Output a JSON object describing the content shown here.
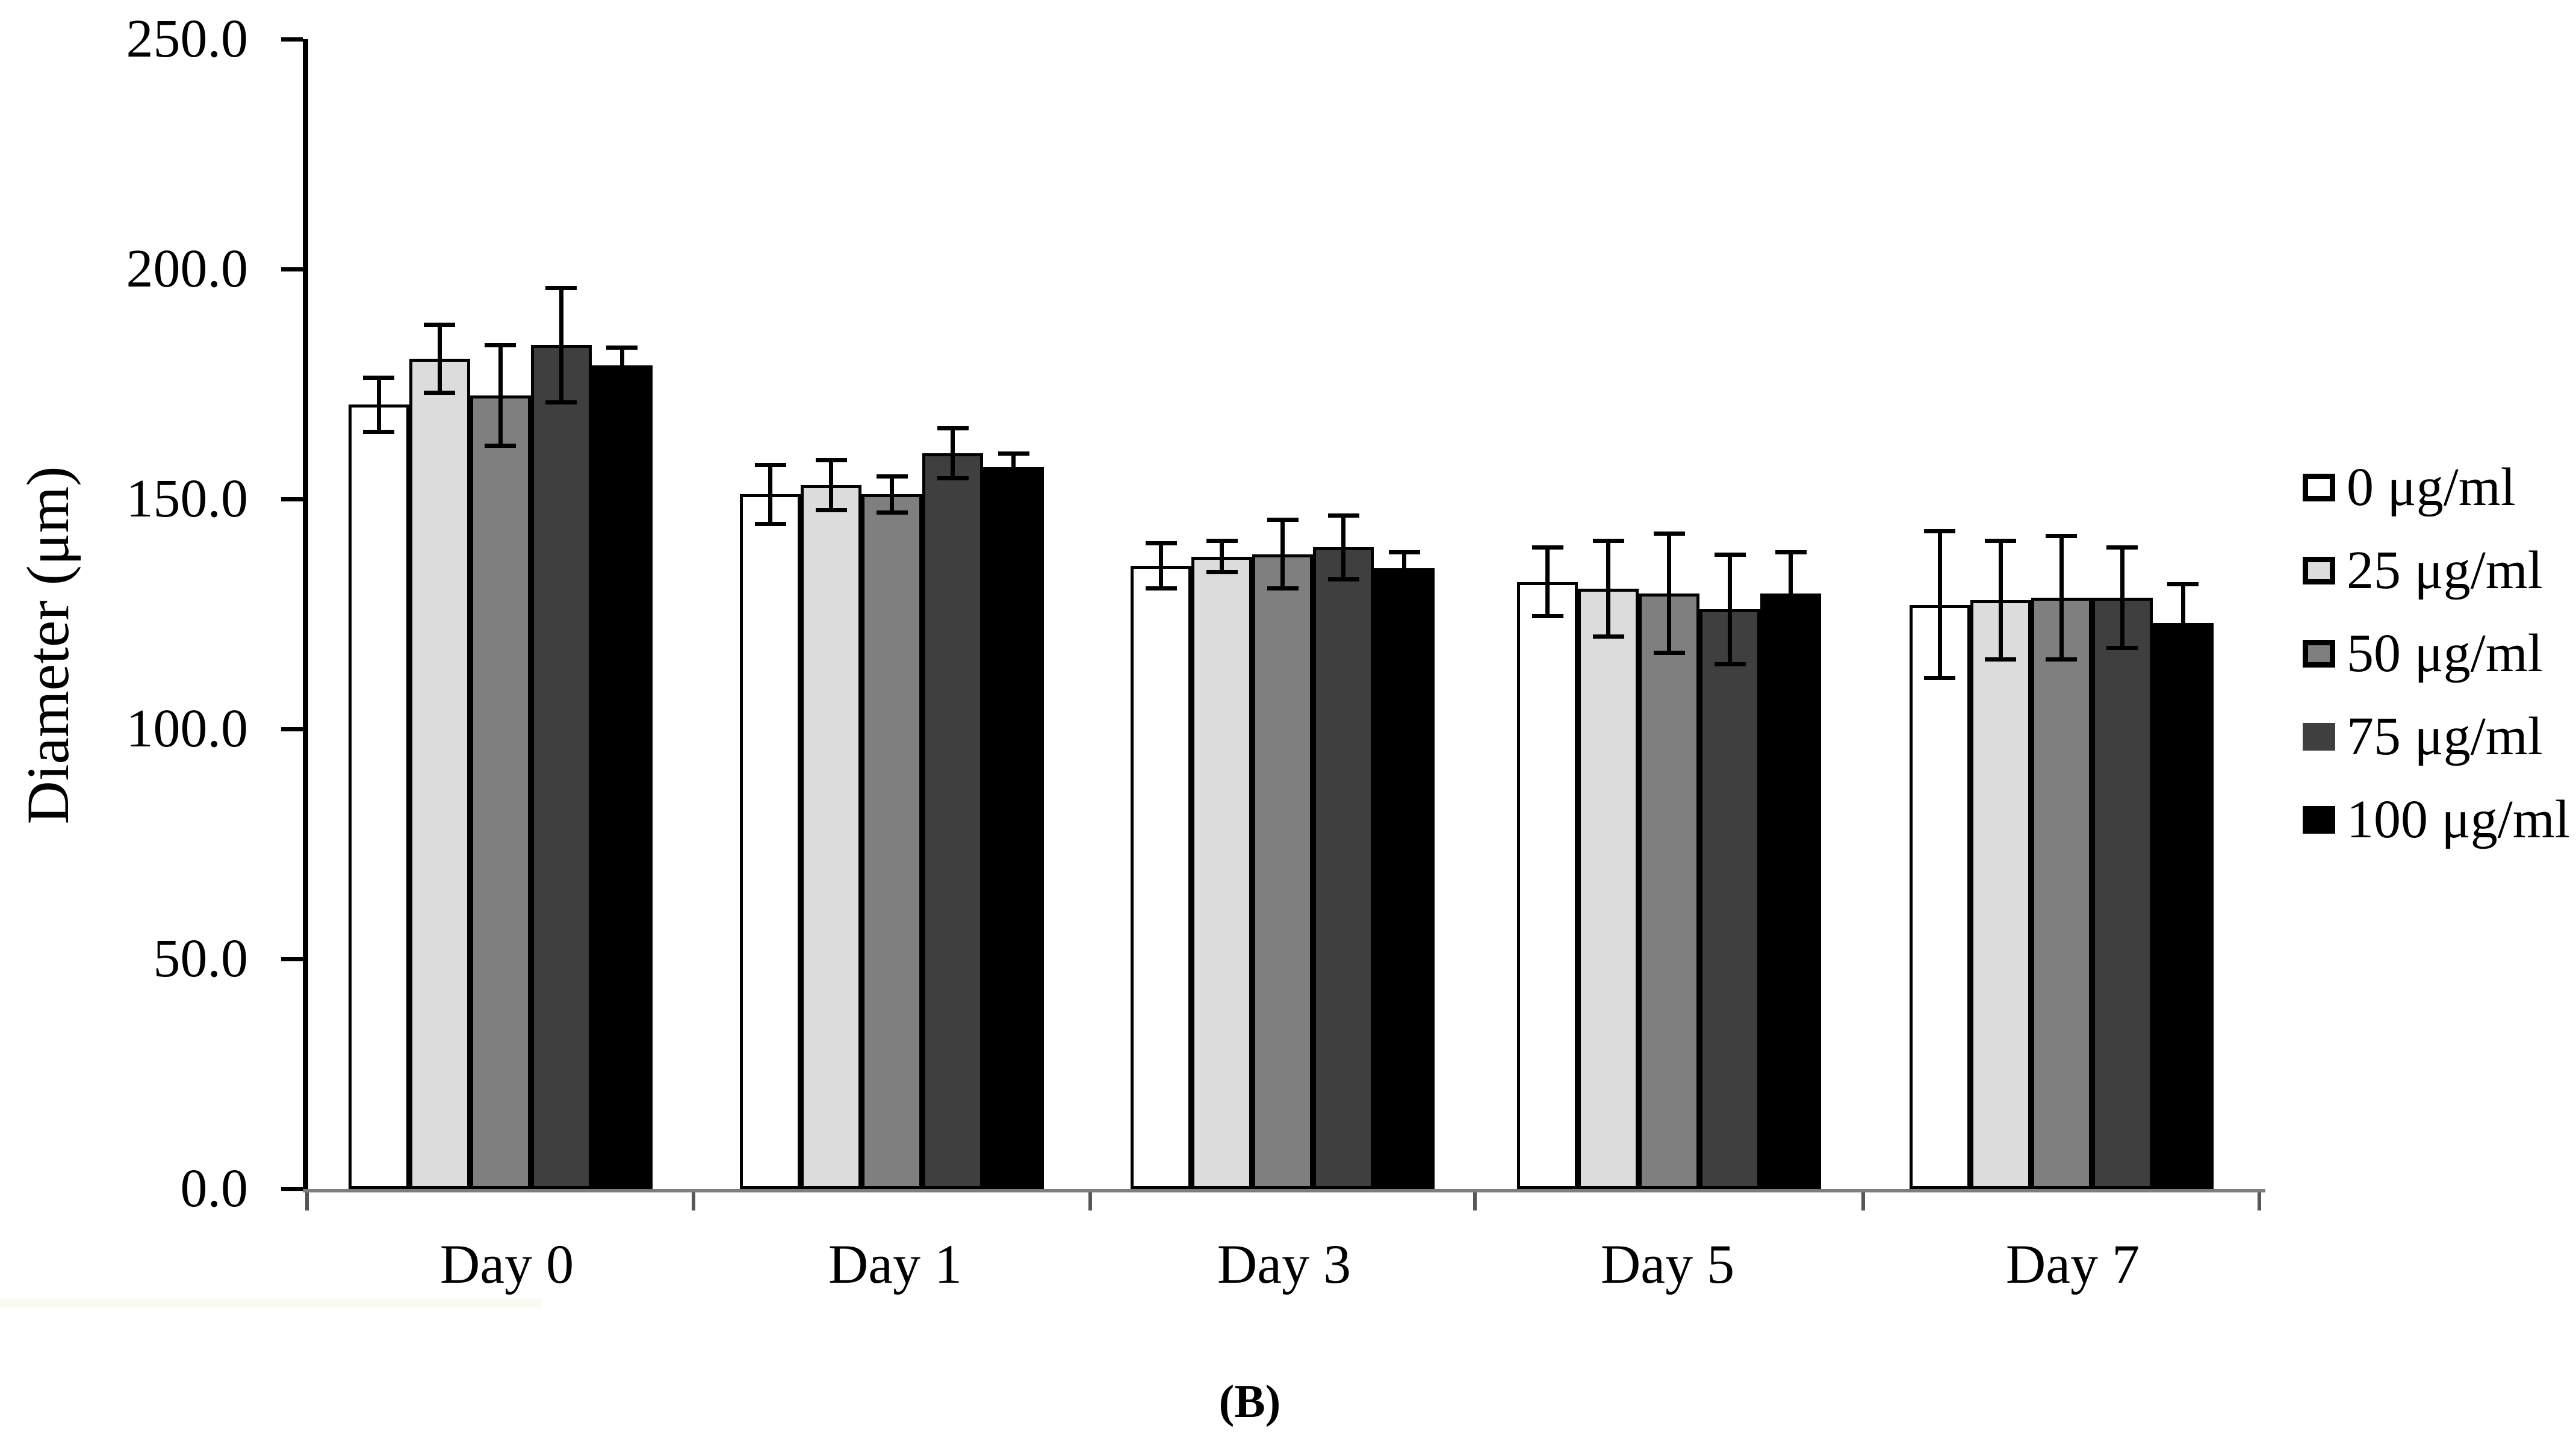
{
  "figure": {
    "caption": "(B)"
  },
  "chart_data": {
    "type": "bar",
    "title": "",
    "xlabel": "",
    "ylabel": "Diameter (μm)",
    "caption": "(B)",
    "ylim": [
      0,
      250
    ],
    "grid": false,
    "legend_position": "right",
    "error_bars": "symmetric, capped, black",
    "yticks": {
      "values": [
        0,
        50,
        100,
        150,
        200,
        250
      ],
      "labels": [
        "0.0",
        "50.0",
        "100.0",
        "150.0",
        "200.0",
        "250.0"
      ]
    },
    "categories": [
      "Day 0",
      "Day 1",
      "Day 3",
      "Day 5",
      "Day 7"
    ],
    "series": [
      {
        "name": "0 μg/ml",
        "fill": "#ffffff",
        "edge": "#000000",
        "swatch_border": true,
        "values": [
          170.5,
          151.0,
          135.5,
          132.0,
          127.0
        ],
        "errors": [
          6.0,
          6.5,
          5.0,
          7.5,
          16.0
        ]
      },
      {
        "name": "25 μg/ml",
        "fill": "#dcdcdc",
        "edge": "#000000",
        "swatch_border": true,
        "values": [
          180.5,
          153.0,
          137.5,
          130.5,
          128.0
        ],
        "errors": [
          7.5,
          5.5,
          3.5,
          10.5,
          13.0
        ]
      },
      {
        "name": "50 μg/ml",
        "fill": "#7f7f7f",
        "edge": "#000000",
        "swatch_border": true,
        "values": [
          172.5,
          151.0,
          138.0,
          129.5,
          128.5
        ],
        "errors": [
          11.0,
          4.0,
          7.5,
          13.0,
          13.5
        ]
      },
      {
        "name": "75 μg/ml",
        "fill": "#3f3f3f",
        "edge": "#000000",
        "swatch_border": false,
        "values": [
          183.5,
          160.0,
          139.5,
          126.0,
          128.5
        ],
        "errors": [
          12.5,
          5.5,
          7.0,
          12.0,
          11.0
        ]
      },
      {
        "name": "100 μg/ml",
        "fill": "#000000",
        "edge": "#000000",
        "swatch_border": false,
        "values": [
          179.0,
          157.0,
          135.0,
          129.5,
          123.0
        ],
        "errors": [
          4.0,
          3.0,
          3.5,
          9.0,
          8.5
        ]
      }
    ]
  }
}
